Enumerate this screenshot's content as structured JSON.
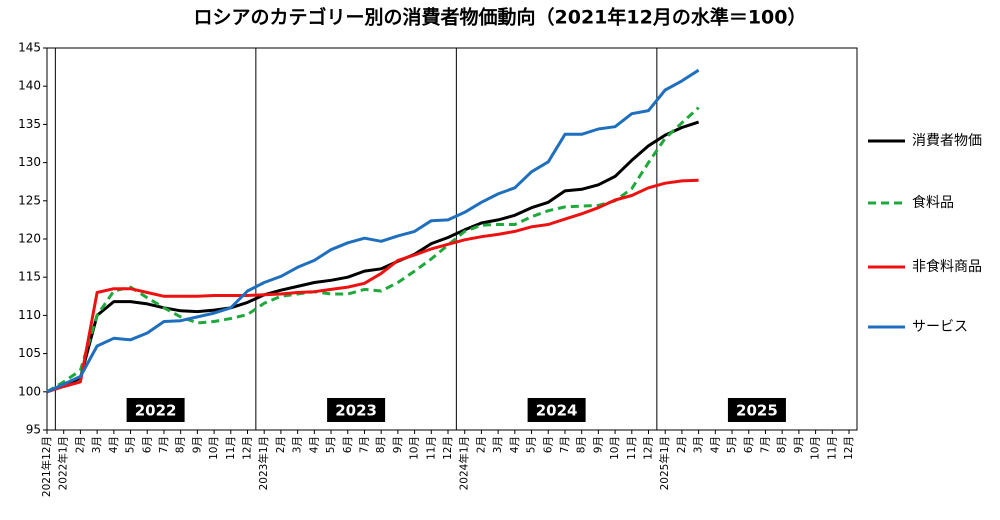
{
  "chart_data": {
    "type": "line",
    "title": "ロシアのカテゴリー別の消費者物価動向（2021年12月の水準＝100）",
    "categories": [
      "2021年12月",
      "2022年1月",
      "2月",
      "3月",
      "4月",
      "5月",
      "6月",
      "7月",
      "8月",
      "9月",
      "10月",
      "11月",
      "12月",
      "2023年1月",
      "2月",
      "3月",
      "4月",
      "5月",
      "6月",
      "7月",
      "8月",
      "9月",
      "10月",
      "11月",
      "12月",
      "2024年1月",
      "2月",
      "3月",
      "4月",
      "5月",
      "6月",
      "7月",
      "8月",
      "9月",
      "10月",
      "11月",
      "12月",
      "2025年1月",
      "2月",
      "3月",
      "4月",
      "5月",
      "6月",
      "7月",
      "8月",
      "9月",
      "10月",
      "11月",
      "12月"
    ],
    "year_labels": [
      "2022",
      "2023",
      "2024",
      "2025"
    ],
    "ylim": [
      95,
      145
    ],
    "yticks": [
      95,
      100,
      105,
      110,
      115,
      120,
      125,
      130,
      135,
      140,
      145
    ],
    "grid": false,
    "legend": "right",
    "series": [
      {
        "name": "消費者物価",
        "color": "#000000",
        "style": "solid",
        "values": [
          100,
          100.8,
          101.8,
          110,
          111.8,
          111.8,
          111.5,
          111,
          110.6,
          110.5,
          110.7,
          111,
          111.7,
          112.7,
          113.3,
          113.8,
          114.3,
          114.6,
          115,
          115.8,
          116.1,
          117.1,
          118,
          119.4,
          120.2,
          121.2,
          122.1,
          122.5,
          123.1,
          124.1,
          124.8,
          126.3,
          126.5,
          127.1,
          128.2,
          130.3,
          132.2,
          133.6,
          134.6,
          135.3,
          null,
          null,
          null,
          null,
          null,
          null,
          null,
          null,
          null
        ]
      },
      {
        "name": "食料品",
        "color": "#1fa83c",
        "style": "dashed",
        "values": [
          100,
          101.3,
          102.8,
          110,
          113.2,
          113.7,
          112.3,
          111,
          109.8,
          109,
          109.2,
          109.6,
          110.1,
          111.6,
          112.5,
          112.8,
          113.1,
          112.8,
          112.8,
          113.4,
          113.2,
          114.3,
          115.8,
          117.4,
          119.2,
          121,
          121.8,
          121.9,
          121.9,
          122.9,
          123.7,
          124.2,
          124.3,
          124.4,
          125,
          126.6,
          130,
          133.2,
          135.2,
          137.2,
          null,
          null,
          null,
          null,
          null,
          null,
          null,
          null,
          null
        ]
      },
      {
        "name": "非食料商品",
        "color": "#ee1111",
        "style": "solid",
        "values": [
          100,
          100.7,
          101.3,
          113,
          113.5,
          113.5,
          113,
          112.5,
          112.5,
          112.5,
          112.6,
          112.6,
          112.6,
          112.7,
          112.8,
          113,
          113.1,
          113.4,
          113.7,
          114.2,
          115.5,
          117.2,
          117.9,
          118.7,
          119.3,
          119.9,
          120.3,
          120.6,
          121,
          121.6,
          121.9,
          122.6,
          123.3,
          124.1,
          125.1,
          125.7,
          126.7,
          127.3,
          127.6,
          127.7,
          null,
          null,
          null,
          null,
          null,
          null,
          null,
          null,
          null
        ]
      },
      {
        "name": "サービス",
        "color": "#1f6fbf",
        "style": "solid",
        "values": [
          100,
          101,
          102,
          106,
          107,
          106.8,
          107.7,
          109.2,
          109.3,
          109.8,
          110.3,
          111,
          113.2,
          114.3,
          115.1,
          116.3,
          117.2,
          118.6,
          119.5,
          120.1,
          119.7,
          120.4,
          121,
          122.4,
          122.5,
          123.5,
          124.8,
          125.9,
          126.7,
          128.8,
          130.1,
          133.7,
          133.7,
          134.4,
          134.7,
          136.4,
          136.8,
          139.5,
          140.7,
          142.1,
          null,
          null,
          null,
          null,
          null,
          null,
          null,
          null,
          null
        ]
      }
    ]
  }
}
